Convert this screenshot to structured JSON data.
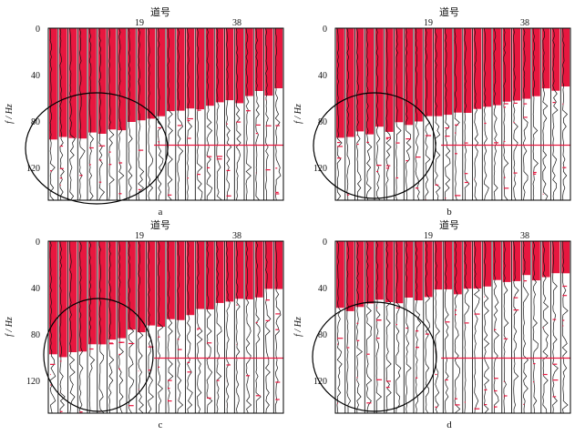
{
  "figure": {
    "panels": [
      {
        "id": "a",
        "letter": "a",
        "top_label": "道号",
        "ticks_x": [
          "19",
          "38"
        ],
        "ticks_y": [
          "0",
          "40",
          "80",
          "120"
        ],
        "ylabel": "f / Hz"
      },
      {
        "id": "b",
        "letter": "b",
        "top_label": "道号",
        "ticks_x": [
          "19",
          "38"
        ],
        "ticks_y": [
          "0",
          "40",
          "80",
          "120"
        ],
        "ylabel": "f / Hz"
      },
      {
        "id": "c",
        "letter": "c",
        "top_label": "道号",
        "ticks_x": [
          "19",
          "38"
        ],
        "ticks_y": [
          "0",
          "40",
          "80",
          "120"
        ],
        "ylabel": "f / Hz"
      },
      {
        "id": "d",
        "letter": "d",
        "top_label": "道号",
        "ticks_x": [
          "19",
          "38"
        ],
        "ticks_y": [
          "0",
          "40",
          "80",
          "120"
        ],
        "ylabel": "f / Hz"
      }
    ],
    "colors": {
      "fill": "#e8173f",
      "trace": "#111111",
      "frame": "#000000"
    }
  }
}
